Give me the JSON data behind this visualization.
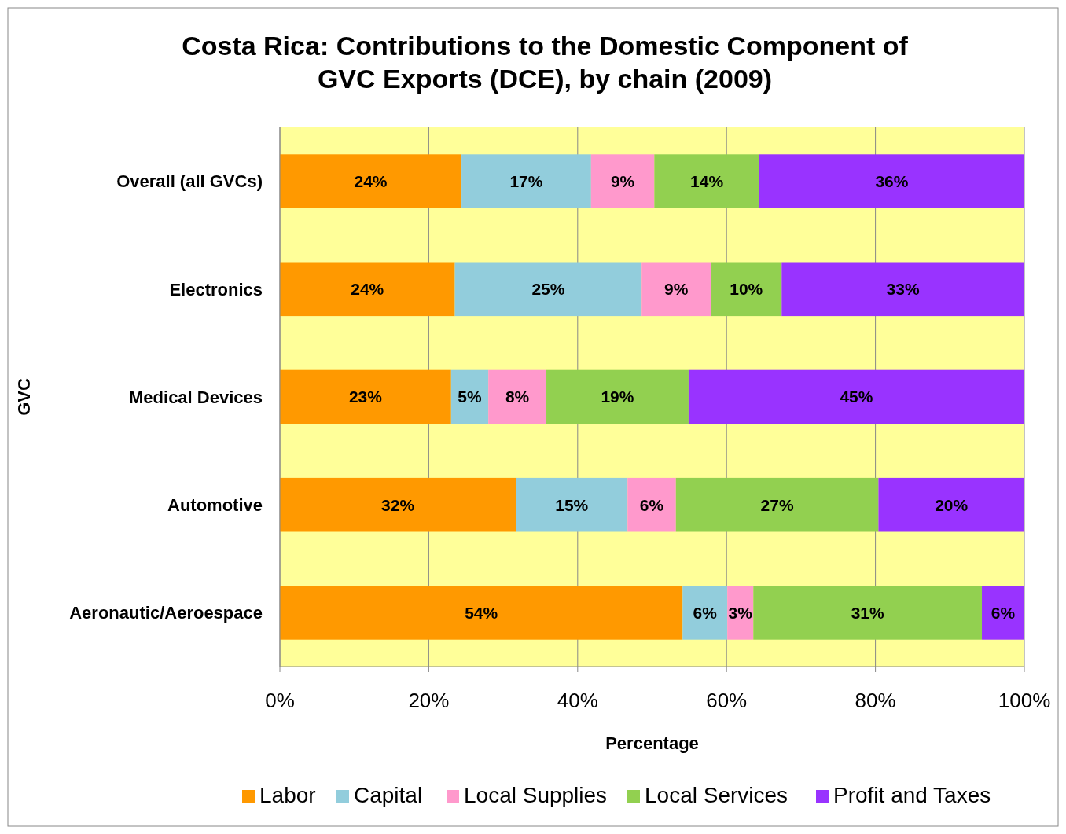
{
  "chart_data": {
    "type": "bar",
    "orientation": "horizontal",
    "stacked": true,
    "title": "Costa Rica: Contributions to the Domestic Component of GVC Exports (DCE), by chain (2009)",
    "xlabel": "Percentage",
    "ylabel": "GVC",
    "categories": [
      "Overall (all GVCs)",
      "Electronics",
      "Medical Devices",
      "Automotive",
      "Aeronautic/Aeroespace"
    ],
    "series": [
      {
        "name": "Labor",
        "color": "#ff9900",
        "values": [
          24.4,
          23.5,
          23.0,
          31.7,
          54.1
        ],
        "value_labels": [
          "24%",
          "24%",
          "23%",
          "32%",
          "54%"
        ]
      },
      {
        "name": "Capital",
        "color": "#92cddc",
        "values": [
          17.4,
          25.1,
          5.0,
          15.0,
          6.0
        ],
        "value_labels": [
          "17%",
          "25%",
          "5%",
          "15%",
          "6%"
        ]
      },
      {
        "name": "Local Supplies",
        "color": "#ff99cc",
        "values": [
          8.5,
          9.3,
          7.8,
          6.5,
          3.5
        ],
        "value_labels": [
          "9%",
          "9%",
          "8%",
          "6%",
          "3%"
        ]
      },
      {
        "name": "Local Services",
        "color": "#92d050",
        "values": [
          14.1,
          9.5,
          19.1,
          27.2,
          30.7
        ],
        "value_labels": [
          "14%",
          "10%",
          "19%",
          "27%",
          "31%"
        ]
      },
      {
        "name": "Profit and Taxes",
        "color": "#9933ff",
        "values": [
          35.6,
          32.6,
          45.1,
          19.6,
          5.7
        ],
        "value_labels": [
          "36%",
          "33%",
          "45%",
          "20%",
          "6%"
        ]
      }
    ],
    "xlim": [
      0,
      100
    ],
    "xticks": [
      {
        "value": 0,
        "label": "0%"
      },
      {
        "value": 20,
        "label": "20%"
      },
      {
        "value": 40,
        "label": "40%"
      },
      {
        "value": 60,
        "label": "60%"
      },
      {
        "value": 80,
        "label": "80%"
      },
      {
        "value": 100,
        "label": "100%"
      }
    ],
    "grid": "x",
    "legend": "bottom"
  }
}
